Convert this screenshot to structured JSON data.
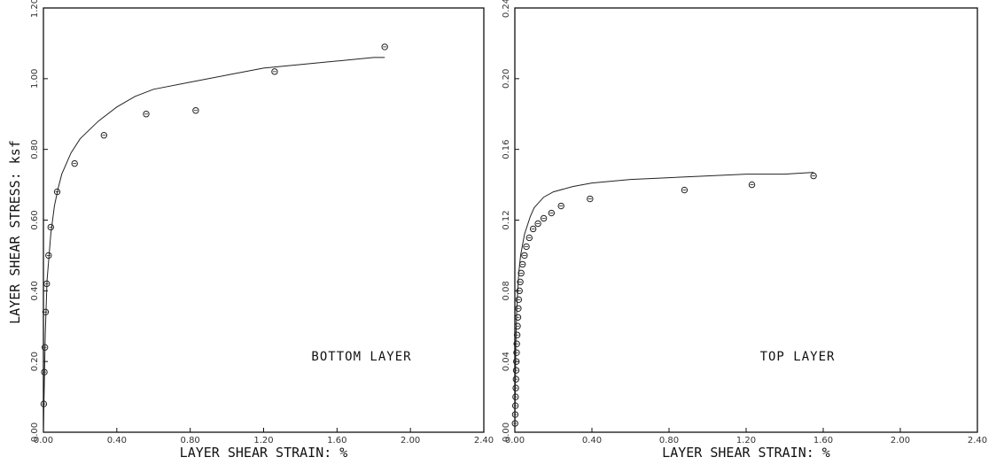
{
  "figure": {
    "ylabel": "LAYER SHEAR STRESS: ksf"
  },
  "chart_data": [
    {
      "type": "scatter",
      "annotation": "BOTTOM LAYER",
      "xlabel": "LAYER SHEAR STRAIN: %",
      "ylabel": "LAYER SHEAR STRESS: ksf",
      "xlim": [
        0,
        2.4
      ],
      "ylim": [
        0,
        1.2
      ],
      "xticks": [
        "0.00",
        "0.40",
        "0.80",
        "1.20",
        "1.60",
        "2.00",
        "2.40"
      ],
      "yticks": [
        "0.00",
        "0.20",
        "0.40",
        "0.60",
        "0.80",
        "1.00",
        "1.20"
      ],
      "grid": false,
      "series": [
        {
          "kind": "points",
          "x": [
            0.002,
            0.005,
            0.008,
            0.012,
            0.018,
            0.028,
            0.04,
            0.075,
            0.17,
            0.33,
            0.56,
            0.83,
            1.26,
            1.86
          ],
          "y": [
            0.08,
            0.17,
            0.24,
            0.34,
            0.42,
            0.5,
            0.58,
            0.68,
            0.76,
            0.84,
            0.9,
            0.91,
            1.02,
            1.09
          ]
        },
        {
          "kind": "curve",
          "x": [
            0,
            0.01,
            0.02,
            0.04,
            0.06,
            0.08,
            0.1,
            0.15,
            0.2,
            0.3,
            0.4,
            0.5,
            0.6,
            0.8,
            1.0,
            1.2,
            1.4,
            1.6,
            1.8,
            1.86
          ],
          "y": [
            0,
            0.28,
            0.43,
            0.56,
            0.64,
            0.69,
            0.73,
            0.79,
            0.83,
            0.88,
            0.92,
            0.95,
            0.97,
            0.99,
            1.01,
            1.03,
            1.04,
            1.05,
            1.06,
            1.06
          ]
        }
      ]
    },
    {
      "type": "scatter",
      "annotation": "TOP LAYER",
      "xlabel": "LAYER SHEAR STRAIN: %",
      "xlim": [
        0,
        2.4
      ],
      "ylim": [
        0,
        0.24
      ],
      "xticks": [
        "0.00",
        "0.40",
        "0.80",
        "1.20",
        "1.60",
        "2.00",
        "2.40"
      ],
      "yticks": [
        "0.00",
        "0.04",
        "0.08",
        "0.12",
        "0.16",
        "0.20",
        "0.24"
      ],
      "grid": false,
      "series": [
        {
          "kind": "points",
          "x": [
            0.001,
            0.002,
            0.003,
            0.004,
            0.005,
            0.006,
            0.007,
            0.008,
            0.009,
            0.01,
            0.012,
            0.014,
            0.016,
            0.018,
            0.02,
            0.024,
            0.028,
            0.033,
            0.04,
            0.05,
            0.06,
            0.075,
            0.095,
            0.12,
            0.15,
            0.19,
            0.24,
            0.39,
            0.88,
            1.23,
            1.55
          ],
          "y": [
            0.005,
            0.01,
            0.015,
            0.02,
            0.025,
            0.03,
            0.035,
            0.04,
            0.045,
            0.05,
            0.055,
            0.06,
            0.065,
            0.07,
            0.075,
            0.08,
            0.085,
            0.09,
            0.095,
            0.1,
            0.105,
            0.11,
            0.115,
            0.118,
            0.121,
            0.124,
            0.128,
            0.132,
            0.137,
            0.14,
            0.145
          ]
        },
        {
          "kind": "curve",
          "x": [
            0,
            0.005,
            0.01,
            0.02,
            0.03,
            0.05,
            0.08,
            0.1,
            0.15,
            0.2,
            0.3,
            0.4,
            0.6,
            0.8,
            1.0,
            1.2,
            1.4,
            1.55
          ],
          "y": [
            0,
            0.05,
            0.07,
            0.09,
            0.1,
            0.112,
            0.122,
            0.127,
            0.133,
            0.136,
            0.139,
            0.141,
            0.143,
            0.144,
            0.145,
            0.146,
            0.146,
            0.147
          ]
        }
      ]
    }
  ]
}
